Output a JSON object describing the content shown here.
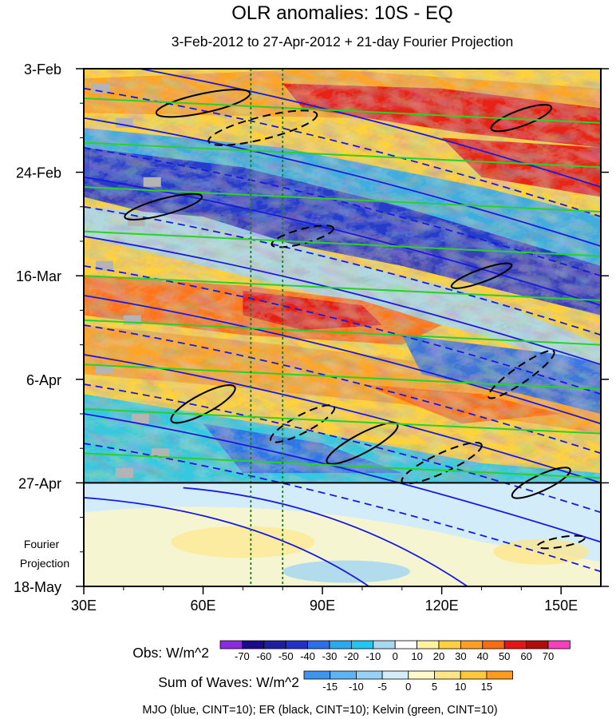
{
  "chart_data": {
    "type": "heatmap",
    "title": "OLR anomalies: 10S - EQ",
    "subtitle": "3-Feb-2012 to 27-Apr-2012 + 21-day Fourier Projection",
    "x_axis": {
      "range_deg_east": [
        30,
        160
      ],
      "tick_values": [
        30,
        60,
        90,
        120,
        150
      ],
      "tick_labels": [
        "30E",
        "60E",
        "90E",
        "120E",
        "150E"
      ]
    },
    "y_axis": {
      "range_days_from_3feb": [
        0,
        105
      ],
      "tick_days": [
        0,
        21,
        42,
        63,
        84,
        105
      ],
      "tick_labels": [
        "3-Feb",
        "24-Feb",
        "16-Mar",
        "6-Apr",
        "27-Apr",
        "18-May"
      ],
      "observation_end_day": 84
    },
    "fourier_label": [
      "Fourier",
      "Projection"
    ],
    "reference_lines_lon": [
      72,
      80
    ],
    "obs_colorbar": {
      "label": "Obs: W/m^2",
      "levels": [
        "-70",
        "-60",
        "-50",
        "-40",
        "-30",
        "-20",
        "-10",
        "0",
        "10",
        "20",
        "30",
        "40",
        "50",
        "60",
        "70"
      ],
      "colors": [
        "#8a2be2",
        "#1a0a8a",
        "#1e1ea0",
        "#2330c8",
        "#2e6ee6",
        "#2aa8f0",
        "#1ec8f0",
        "#a8d8f0",
        "#ffffff",
        "#fff3a0",
        "#ffd23c",
        "#ffa020",
        "#ff6a14",
        "#e61414",
        "#b40a0a",
        "#ff3cbe"
      ]
    },
    "waves_colorbar": {
      "label": "Sum of Waves: W/m^2",
      "levels": [
        "-15",
        "-10",
        "-5",
        "0",
        "5",
        "10",
        "15"
      ],
      "colors": [
        "#3c96f0",
        "#5ab4f5",
        "#96d2f5",
        "#d2ecfa",
        "#fff8c8",
        "#ffe682",
        "#ffc83c",
        "#ff9a1e"
      ]
    },
    "wave_legend": "MJO (blue, CINT=10); ER (black, CINT=10); Kelvin (green, CINT=10)",
    "wave_colors": {
      "mjo": "#1a1adc",
      "er": "#000000",
      "kelvin": "#28d228"
    }
  }
}
